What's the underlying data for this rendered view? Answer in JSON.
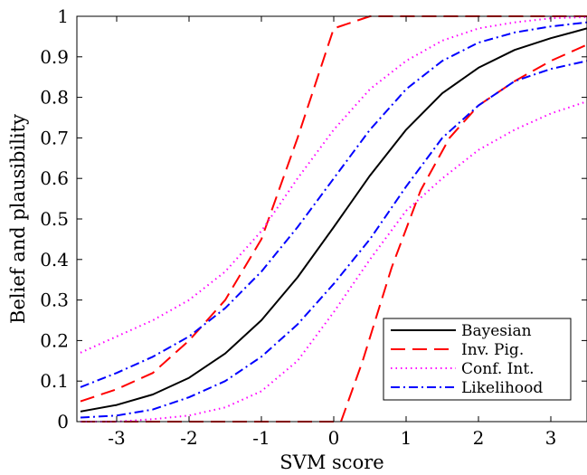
{
  "chart_data": {
    "type": "line",
    "title": "",
    "xlabel": "SVM score",
    "ylabel": "Belief and plausibility",
    "xlim": [
      -3.55,
      3.5
    ],
    "ylim": [
      0,
      1
    ],
    "xticks": [
      -3,
      -2,
      -1,
      0,
      1,
      2,
      3
    ],
    "xtick_labels": [
      "-3",
      "-2",
      "-1",
      "0",
      "1",
      "2",
      "3"
    ],
    "yticks": [
      0,
      0.1,
      0.2,
      0.3,
      0.4,
      0.5,
      0.6,
      0.7,
      0.8,
      0.9,
      1
    ],
    "ytick_labels": [
      "0",
      "0.1",
      "0.2",
      "0.3",
      "0.4",
      "0.5",
      "0.6",
      "0.7",
      "0.8",
      "0.9",
      "1"
    ],
    "grid": false,
    "legend_position": "bottom-right",
    "x": [
      -3.5,
      -3.0,
      -2.5,
      -2.0,
      -1.5,
      -1.0,
      -0.5,
      0.0,
      0.5,
      1.0,
      1.5,
      2.0,
      2.5,
      3.0,
      3.5
    ],
    "series": [
      {
        "name": "Bayesian",
        "color": "#000000",
        "dash": "solid",
        "values": [
          0.025,
          0.041,
          0.067,
          0.108,
          0.168,
          0.25,
          0.356,
          0.48,
          0.607,
          0.72,
          0.81,
          0.873,
          0.917,
          0.946,
          0.97
        ]
      },
      {
        "name": "Inv. Pig.",
        "color": "#ff0000",
        "dash": "long-dash",
        "values": [
          0.05,
          0.08,
          0.12,
          0.2,
          0.3,
          0.45,
          0.7,
          0.97,
          1.0,
          1.0,
          1.0,
          1.0,
          1.0,
          1.0,
          1.0
        ],
        "lower_x": [
          -3.5,
          -3.0,
          -2.5,
          -2.0,
          -1.5,
          -1.0,
          -0.5,
          0.0,
          0.1,
          0.4,
          0.8,
          1.2,
          1.6,
          2.0,
          2.5,
          3.0,
          3.5
        ],
        "lower_values": [
          0.0,
          0.0,
          0.0,
          0.0,
          0.0,
          0.0,
          0.0,
          0.0,
          0.0,
          0.15,
          0.38,
          0.57,
          0.7,
          0.78,
          0.84,
          0.89,
          0.93
        ]
      },
      {
        "name": "Conf. Int.",
        "color": "#ff00ff",
        "dash": "dotted",
        "values": [
          0.17,
          0.21,
          0.25,
          0.3,
          0.37,
          0.47,
          0.6,
          0.72,
          0.82,
          0.89,
          0.94,
          0.97,
          0.985,
          0.995,
          0.998
        ],
        "lower_values": [
          0.0,
          0.0,
          0.006,
          0.015,
          0.035,
          0.075,
          0.15,
          0.27,
          0.4,
          0.52,
          0.6,
          0.67,
          0.72,
          0.76,
          0.79
        ]
      },
      {
        "name": "Likelihood",
        "color": "#0000ff",
        "dash": "dash-dot",
        "values": [
          0.085,
          0.12,
          0.16,
          0.21,
          0.28,
          0.37,
          0.48,
          0.6,
          0.72,
          0.82,
          0.89,
          0.935,
          0.96,
          0.975,
          0.985
        ],
        "lower_values": [
          0.01,
          0.015,
          0.03,
          0.06,
          0.1,
          0.16,
          0.24,
          0.34,
          0.45,
          0.58,
          0.7,
          0.78,
          0.84,
          0.87,
          0.89
        ]
      }
    ]
  }
}
